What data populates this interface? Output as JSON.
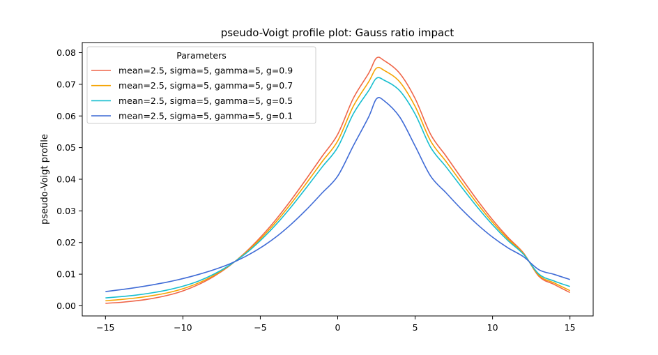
{
  "chart_data": {
    "type": "line",
    "title": "pseudo-Voigt profile plot: Gauss ratio impact",
    "xlabel": "",
    "ylabel": "pseudo-Voigt profile",
    "xlim": [
      -16.5,
      16.5
    ],
    "ylim": [
      -0.0032,
      0.0832
    ],
    "xticks": [
      -15,
      -10,
      -5,
      0,
      5,
      10,
      15
    ],
    "xtick_labels": [
      "−15",
      "−10",
      "−5",
      "0",
      "5",
      "10",
      "15"
    ],
    "yticks": [
      0.0,
      0.01,
      0.02,
      0.03,
      0.04,
      0.05,
      0.06,
      0.07,
      0.08
    ],
    "ytick_labels": [
      "0.00",
      "0.01",
      "0.02",
      "0.03",
      "0.04",
      "0.05",
      "0.06",
      "0.07",
      "0.08"
    ],
    "grid": false,
    "legend": {
      "title": "Parameters",
      "placement": "top-left"
    },
    "x": [
      -15,
      -14,
      -13,
      -12,
      -11,
      -10,
      -9,
      -8,
      -7,
      -6,
      -5,
      -4,
      -3,
      -2,
      -1,
      0,
      1,
      2,
      2.5,
      3,
      4,
      5,
      6,
      7,
      8,
      9,
      10,
      11,
      12,
      13,
      14,
      15
    ],
    "series": [
      {
        "name": "mean=2.5, sigma=5, gamma=5, g=0.9",
        "color": "#ef6548",
        "values": [
          0.0008,
          0.0011,
          0.0016,
          0.0023,
          0.0033,
          0.0047,
          0.0067,
          0.0093,
          0.0126,
          0.0167,
          0.0216,
          0.0272,
          0.0335,
          0.0403,
          0.0473,
          0.0542,
          0.0655,
          0.0735,
          0.0783,
          0.0775,
          0.0735,
          0.0655,
          0.0542,
          0.0473,
          0.0403,
          0.0335,
          0.0272,
          0.0216,
          0.0167,
          0.0093,
          0.0067,
          0.0042
        ]
      },
      {
        "name": "mean=2.5, sigma=5, gamma=5, g=0.7",
        "color": "#f5a300",
        "values": [
          0.0016,
          0.002,
          0.0025,
          0.0032,
          0.0041,
          0.0054,
          0.0072,
          0.0096,
          0.0127,
          0.0165,
          0.0211,
          0.0264,
          0.0324,
          0.0389,
          0.0456,
          0.0521,
          0.063,
          0.0708,
          0.0751,
          0.0744,
          0.0708,
          0.063,
          0.0521,
          0.0456,
          0.0389,
          0.0324,
          0.0264,
          0.0211,
          0.0165,
          0.0096,
          0.0072,
          0.0048
        ]
      },
      {
        "name": "mean=2.5, sigma=5, gamma=5, g=0.5",
        "color": "#17becf",
        "values": [
          0.0025,
          0.0029,
          0.0034,
          0.0041,
          0.005,
          0.0062,
          0.0078,
          0.01,
          0.0128,
          0.0163,
          0.0206,
          0.0256,
          0.0313,
          0.0375,
          0.0439,
          0.0501,
          0.0606,
          0.068,
          0.0719,
          0.0713,
          0.068,
          0.0606,
          0.0501,
          0.0439,
          0.0375,
          0.0313,
          0.0256,
          0.0206,
          0.0163,
          0.01,
          0.0078,
          0.0061
        ]
      },
      {
        "name": "mean=2.5, sigma=5, gamma=5, g=0.1",
        "color": "#3f6bd6",
        "values": [
          0.0045,
          0.0051,
          0.0058,
          0.0066,
          0.0075,
          0.0086,
          0.0099,
          0.0114,
          0.0132,
          0.0155,
          0.0183,
          0.0217,
          0.0258,
          0.0305,
          0.0357,
          0.041,
          0.0505,
          0.0597,
          0.0654,
          0.0648,
          0.0597,
          0.0505,
          0.041,
          0.0357,
          0.0305,
          0.0258,
          0.0217,
          0.0183,
          0.0155,
          0.0114,
          0.0099,
          0.0083
        ]
      }
    ]
  }
}
